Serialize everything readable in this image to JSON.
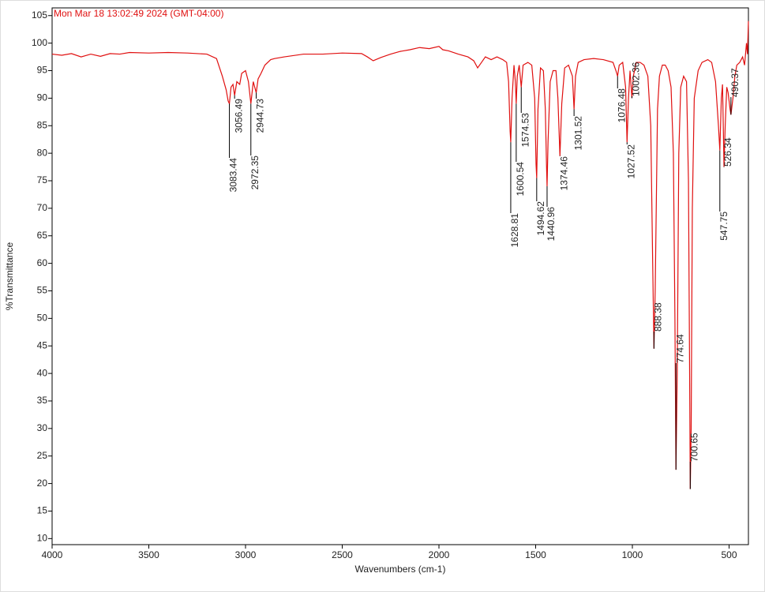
{
  "chart_data": {
    "type": "line",
    "title": "Mon Mar 18 13:02:49 2024 (GMT-04:00)",
    "xlabel": "Wavenumbers (cm-1)",
    "ylabel": "%Transmittance",
    "xlim": [
      4000,
      400
    ],
    "ylim": [
      8.9,
      106.4
    ],
    "xticks": [
      4000,
      3500,
      3000,
      2500,
      2000,
      1500,
      1000,
      500
    ],
    "yticks": [
      10,
      15,
      20,
      25,
      30,
      35,
      40,
      45,
      50,
      55,
      60,
      65,
      70,
      75,
      80,
      85,
      90,
      95,
      100,
      105
    ],
    "series": [
      {
        "color": "#e01010",
        "x": [
          4000,
          3950,
          3900,
          3850,
          3800,
          3750,
          3700,
          3650,
          3600,
          3500,
          3400,
          3300,
          3200,
          3150,
          3120,
          3100,
          3090,
          3083.44,
          3075,
          3065,
          3056.49,
          3045,
          3030,
          3020,
          3000,
          2985,
          2972.35,
          2960,
          2944.73,
          2935,
          2920,
          2900,
          2870,
          2850,
          2800,
          2700,
          2600,
          2500,
          2400,
          2370,
          2340,
          2300,
          2250,
          2200,
          2150,
          2100,
          2050,
          2000,
          1980,
          1950,
          1900,
          1850,
          1820,
          1800,
          1780,
          1760,
          1730,
          1700,
          1670,
          1650,
          1640,
          1632,
          1628.81,
          1622,
          1612,
          1605,
          1600.54,
          1595,
          1585,
          1574.53,
          1565,
          1540,
          1520,
          1505,
          1498,
          1494.62,
          1488,
          1475,
          1460,
          1450,
          1444,
          1440.96,
          1436,
          1425,
          1410,
          1395,
          1385,
          1374.46,
          1365,
          1350,
          1330,
          1310,
          1301.52,
          1294,
          1280,
          1250,
          1200,
          1150,
          1100,
          1085,
          1076.48,
          1068,
          1050,
          1035,
          1027.52,
          1020,
          1012,
          1002.36,
          995,
          980,
          960,
          940,
          920,
          905,
          895,
          888.38,
          882,
          870,
          860,
          845,
          830,
          815,
          800,
          788,
          780,
          774.64,
          768,
          760,
          750,
          735,
          720,
          710,
          704,
          700.65,
          696,
          690,
          680,
          660,
          640,
          610,
          590,
          570,
          555,
          547.75,
          540,
          534,
          530,
          526.34,
          520,
          512,
          505,
          495,
          490.37,
          480,
          470,
          460,
          445,
          430,
          420,
          410,
          405,
          400
        ],
        "values": [
          98,
          97.8,
          98.1,
          97.5,
          98,
          97.6,
          98.1,
          98,
          98.3,
          98.2,
          98.3,
          98.2,
          98,
          97.2,
          94,
          91.5,
          89.5,
          89,
          92,
          92.5,
          90.5,
          93,
          92.5,
          94.5,
          95,
          93,
          89,
          93,
          91,
          93.5,
          94.5,
          96,
          97,
          97.2,
          97.5,
          98,
          98,
          98.2,
          98.1,
          97.5,
          96.8,
          97.4,
          98,
          98.5,
          98.8,
          99.2,
          99,
          99.4,
          98.8,
          98.6,
          98,
          97.5,
          96.8,
          95.5,
          96.5,
          97.5,
          97,
          97.5,
          97,
          96.5,
          93,
          84,
          82,
          90,
          96,
          93,
          89,
          94,
          96,
          92,
          96,
          96.5,
          96,
          90,
          78,
          75.5,
          88,
          95.5,
          95,
          88,
          78,
          74,
          82,
          93,
          95,
          95,
          90,
          79.5,
          89,
          95.5,
          96,
          94,
          88,
          94,
          96.5,
          97,
          97.2,
          97,
          96.5,
          95,
          94,
          96,
          96.5,
          92,
          82,
          90,
          95,
          90,
          94,
          96.5,
          96.5,
          96,
          94,
          85,
          60,
          44.5,
          55,
          88,
          94,
          96,
          96,
          95,
          92,
          80,
          50,
          22.5,
          40,
          80,
          92,
          94,
          93,
          75,
          40,
          19,
          30,
          70,
          90,
          95,
          96.5,
          97,
          96.5,
          93,
          85,
          80.5,
          90,
          92.5,
          85,
          77.5,
          85,
          92,
          91,
          88,
          87,
          90,
          94,
          96,
          96.5,
          97.5,
          96,
          100,
          98,
          104
        ]
      }
    ],
    "annotations": [
      {
        "x": 3083.44,
        "y": 89
      },
      {
        "x": 3056.49,
        "y": 90.5
      },
      {
        "x": 2972.35,
        "y": 89
      },
      {
        "x": 2944.73,
        "y": 91
      },
      {
        "x": 1628.81,
        "y": 82
      },
      {
        "x": 1600.54,
        "y": 89
      },
      {
        "x": 1574.53,
        "y": 92
      },
      {
        "x": 1494.62,
        "y": 75.5
      },
      {
        "x": 1440.96,
        "y": 74
      },
      {
        "x": 1374.46,
        "y": 79.5
      },
      {
        "x": 1301.52,
        "y": 88
      },
      {
        "x": 1076.48,
        "y": 94
      },
      {
        "x": 1027.52,
        "y": 82
      },
      {
        "x": 1002.36,
        "y": 90
      },
      {
        "x": 888.38,
        "y": 44.5
      },
      {
        "x": 774.64,
        "y": 22.5
      },
      {
        "x": 700.65,
        "y": 19
      },
      {
        "x": 547.75,
        "y": 80.5
      },
      {
        "x": 526.34,
        "y": 77.5
      },
      {
        "x": 490.37,
        "y": 87
      }
    ]
  }
}
